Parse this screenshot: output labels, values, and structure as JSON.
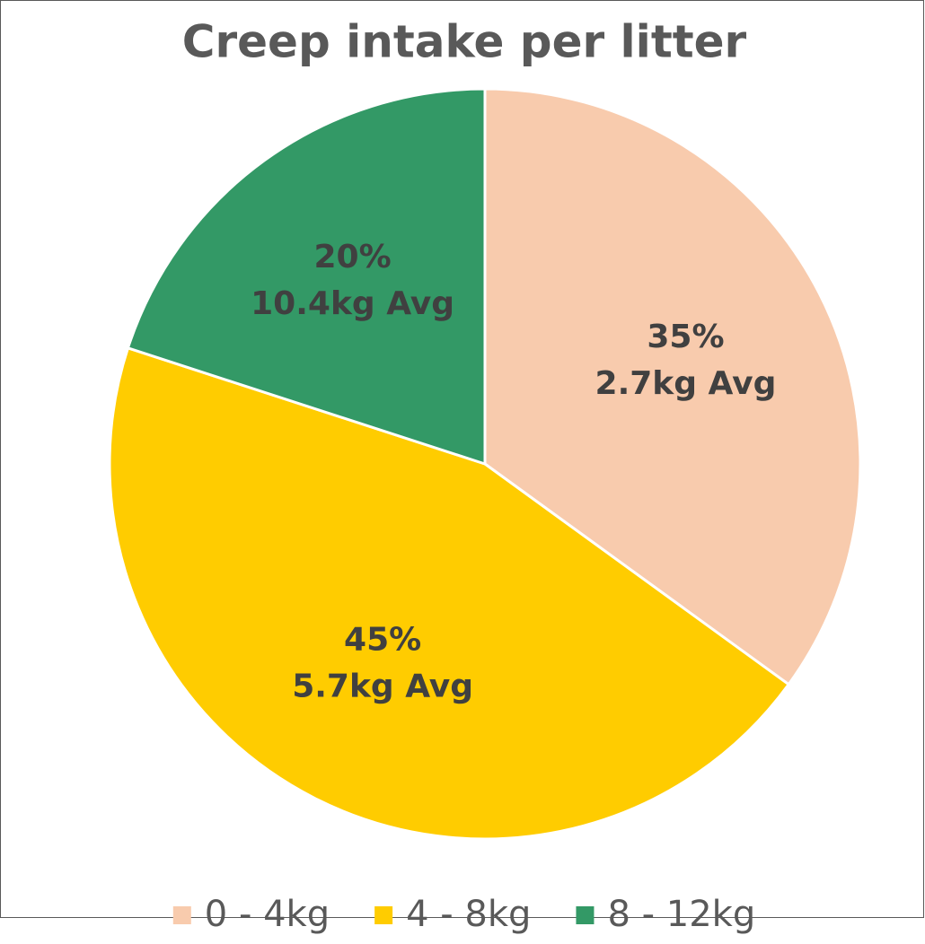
{
  "chart_data": {
    "type": "pie",
    "title": "Creep intake per litter",
    "categories": [
      "0 - 4kg",
      "4 - 8kg",
      "8 - 12kg"
    ],
    "values": [
      35,
      45,
      20
    ],
    "value_labels": [
      "35%",
      "45%",
      "20%"
    ],
    "avg_labels": [
      "2.7kg Avg",
      "5.7kg Avg",
      "10.4kg Avg"
    ],
    "colors": [
      "#f8cbad",
      "#ffcc00",
      "#339966"
    ],
    "legend": "bottom"
  }
}
